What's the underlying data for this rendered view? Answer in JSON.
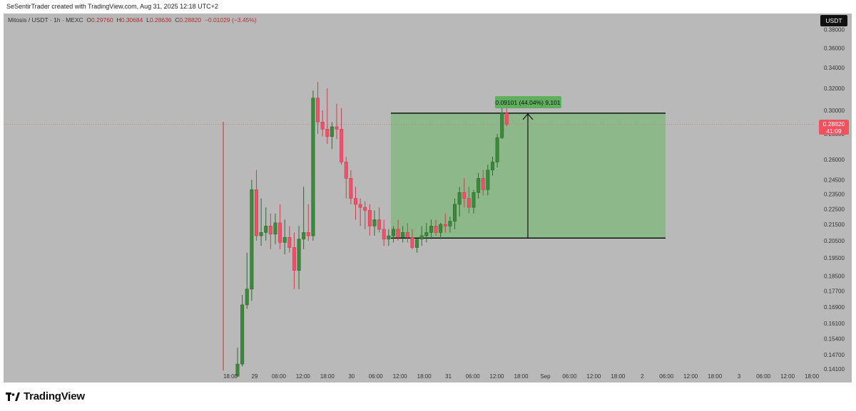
{
  "header": {
    "caption": "SeSentirTrader created with TradingView.com, Aug 31, 2025 12:18 UTC+2"
  },
  "legend": {
    "symbol": "Mitosis / USDT · 1h · MEXC",
    "open_label": "O",
    "open": "0.29760",
    "high_label": "H",
    "high": "0.30684",
    "low_label": "L",
    "low": "0.28636",
    "close_label": "C",
    "close": "0.28820",
    "change": "−0.01029 (−3.45%)"
  },
  "currency_badge": "USDT",
  "price_tag": {
    "price": "0.28820",
    "countdown": "41:09"
  },
  "measure_label": "0.09101 (44.04%) 9,101",
  "footer": {
    "brand": "TradingView"
  },
  "colors": {
    "up": "#3b8a3b",
    "down": "#f0506a",
    "zone": "#8db98a",
    "background": "#b9b9b9"
  },
  "chart_data": {
    "type": "candlestick",
    "scale": "log",
    "y_ticks": [
      "0.38000",
      "0.36000",
      "0.34000",
      "0.32000",
      "0.30000",
      "0.28000",
      "0.26000",
      "0.24500",
      "0.23500",
      "0.22500",
      "0.21500",
      "0.20500",
      "0.19500",
      "0.18500",
      "0.17700",
      "0.16900",
      "0.16100",
      "0.15400",
      "0.14700",
      "0.14100"
    ],
    "x_ticks": [
      "18:00",
      "29",
      "06:00",
      "12:00",
      "18:00",
      "30",
      "06:00",
      "12:00",
      "18:00",
      "31",
      "06:00",
      "12:00",
      "18:00",
      "Sep",
      "06:00",
      "12:00",
      "18:00",
      "2",
      "06:00",
      "12:00",
      "18:00",
      "3",
      "06:00",
      "12:00",
      "18:00"
    ],
    "ylim": [
      0.141,
      0.385
    ],
    "last_price": 0.2882,
    "measure": {
      "from_price": 0.2066,
      "to_price": 0.2976,
      "change": 0.09101,
      "change_pct": 44.04
    },
    "candles": [
      [
        0.138,
        0.15,
        0.138,
        0.143
      ],
      [
        0.143,
        0.175,
        0.142,
        0.17
      ],
      [
        0.17,
        0.198,
        0.168,
        0.178
      ],
      [
        0.178,
        0.245,
        0.172,
        0.238
      ],
      [
        0.238,
        0.252,
        0.205,
        0.208
      ],
      [
        0.208,
        0.232,
        0.202,
        0.21
      ],
      [
        0.21,
        0.226,
        0.205,
        0.214
      ],
      [
        0.214,
        0.222,
        0.2,
        0.209
      ],
      [
        0.209,
        0.222,
        0.203,
        0.216
      ],
      [
        0.216,
        0.228,
        0.2,
        0.204
      ],
      [
        0.204,
        0.218,
        0.197,
        0.207
      ],
      [
        0.207,
        0.214,
        0.198,
        0.201
      ],
      [
        0.201,
        0.21,
        0.178,
        0.188
      ],
      [
        0.188,
        0.214,
        0.178,
        0.206
      ],
      [
        0.206,
        0.24,
        0.2,
        0.21
      ],
      [
        0.21,
        0.228,
        0.205,
        0.208
      ],
      [
        0.208,
        0.318,
        0.205,
        0.311
      ],
      [
        0.311,
        0.326,
        0.28,
        0.29
      ],
      [
        0.29,
        0.3,
        0.278,
        0.284
      ],
      [
        0.284,
        0.32,
        0.272,
        0.278
      ],
      [
        0.278,
        0.29,
        0.268,
        0.286
      ],
      [
        0.286,
        0.306,
        0.276,
        0.284
      ],
      [
        0.284,
        0.302,
        0.256,
        0.258
      ],
      [
        0.258,
        0.262,
        0.232,
        0.246
      ],
      [
        0.246,
        0.252,
        0.228,
        0.232
      ],
      [
        0.232,
        0.24,
        0.218,
        0.228
      ],
      [
        0.228,
        0.232,
        0.214,
        0.226
      ],
      [
        0.226,
        0.23,
        0.212,
        0.224
      ],
      [
        0.224,
        0.228,
        0.208,
        0.214
      ],
      [
        0.214,
        0.224,
        0.208,
        0.218
      ],
      [
        0.218,
        0.226,
        0.21,
        0.212
      ],
      [
        0.212,
        0.218,
        0.202,
        0.206
      ],
      [
        0.206,
        0.212,
        0.202,
        0.208
      ],
      [
        0.208,
        0.214,
        0.204,
        0.212
      ],
      [
        0.212,
        0.218,
        0.205,
        0.207
      ],
      [
        0.207,
        0.214,
        0.204,
        0.21
      ],
      [
        0.21,
        0.216,
        0.204,
        0.207
      ],
      [
        0.207,
        0.212,
        0.2,
        0.201
      ],
      [
        0.201,
        0.206,
        0.198,
        0.206
      ],
      [
        0.206,
        0.214,
        0.202,
        0.208
      ],
      [
        0.208,
        0.216,
        0.204,
        0.21
      ],
      [
        0.21,
        0.218,
        0.206,
        0.214
      ],
      [
        0.214,
        0.218,
        0.208,
        0.21
      ],
      [
        0.21,
        0.216,
        0.206,
        0.215
      ],
      [
        0.215,
        0.222,
        0.21,
        0.214
      ],
      [
        0.214,
        0.22,
        0.21,
        0.217
      ],
      [
        0.217,
        0.232,
        0.212,
        0.228
      ],
      [
        0.228,
        0.24,
        0.22,
        0.236
      ],
      [
        0.236,
        0.246,
        0.226,
        0.232
      ],
      [
        0.232,
        0.24,
        0.222,
        0.226
      ],
      [
        0.226,
        0.238,
        0.222,
        0.236
      ],
      [
        0.236,
        0.25,
        0.232,
        0.246
      ],
      [
        0.246,
        0.252,
        0.234,
        0.238
      ],
      [
        0.238,
        0.256,
        0.234,
        0.252
      ],
      [
        0.252,
        0.262,
        0.248,
        0.258
      ],
      [
        0.258,
        0.28,
        0.254,
        0.277
      ],
      [
        0.277,
        0.304,
        0.276,
        0.2976
      ],
      [
        0.2976,
        0.30684,
        0.28636,
        0.2882
      ]
    ]
  }
}
